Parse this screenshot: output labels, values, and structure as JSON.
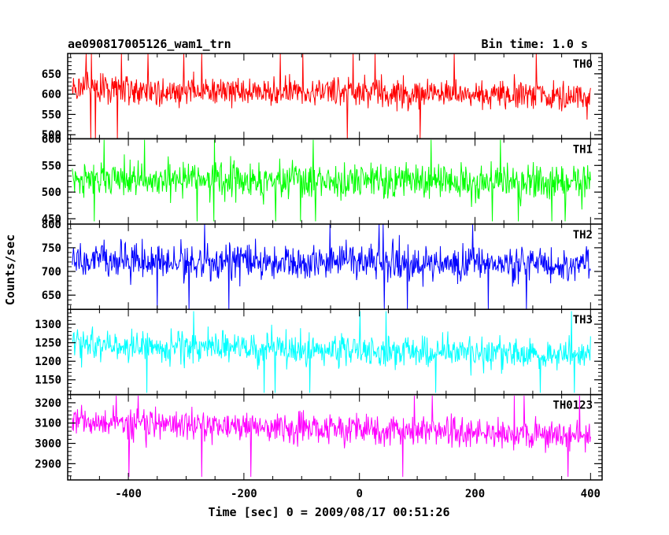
{
  "chart_data": {
    "type": "line",
    "title_left": "ae090817005126_wam1_trn",
    "title_right": "Bin time: 1.0 s",
    "xlabel": "Time [sec] 0 = 2009/08/17 00:51:26",
    "ylabel": "Counts/sec",
    "xlim": [
      -505,
      420
    ],
    "x_ticks": [
      -400,
      -200,
      0,
      200,
      400
    ],
    "x_range": [
      -497,
      400
    ],
    "panels": [
      {
        "name": "TH0",
        "color": "#ff0000",
        "ylim": [
          490,
          700
        ],
        "y_ticks": [
          500,
          550,
          600,
          650
        ],
        "mean": 604,
        "amp": 48,
        "trend": -0.02,
        "spike_lo": 490,
        "spike_hi": 700
      },
      {
        "name": "TH1",
        "color": "#00ff00",
        "ylim": [
          440,
          600
        ],
        "y_ticks": [
          450,
          500,
          550,
          600
        ],
        "mean": 521,
        "amp": 42,
        "trend": -0.005,
        "spike_lo": 445,
        "spike_hi": 598
      },
      {
        "name": "TH2",
        "color": "#0000ff",
        "ylim": [
          620,
          800
        ],
        "y_ticks": [
          650,
          700,
          750,
          800
        ],
        "mean": 718,
        "amp": 48,
        "trend": -0.01,
        "spike_lo": 620,
        "spike_hi": 800
      },
      {
        "name": "TH3",
        "color": "#00ffff",
        "ylim": [
          1110,
          1340
        ],
        "y_ticks": [
          1150,
          1200,
          1250,
          1300
        ],
        "mean": 1228,
        "amp": 55,
        "trend": -0.03,
        "spike_lo": 1115,
        "spike_hi": 1335
      },
      {
        "name": "TH0123",
        "color": "#ff00ff",
        "ylim": [
          2820,
          3240
        ],
        "y_ticks": [
          2900,
          3000,
          3100,
          3200
        ],
        "mean": 3068,
        "amp": 95,
        "trend": -0.08,
        "spike_lo": 2835,
        "spike_hi": 3235
      }
    ]
  }
}
